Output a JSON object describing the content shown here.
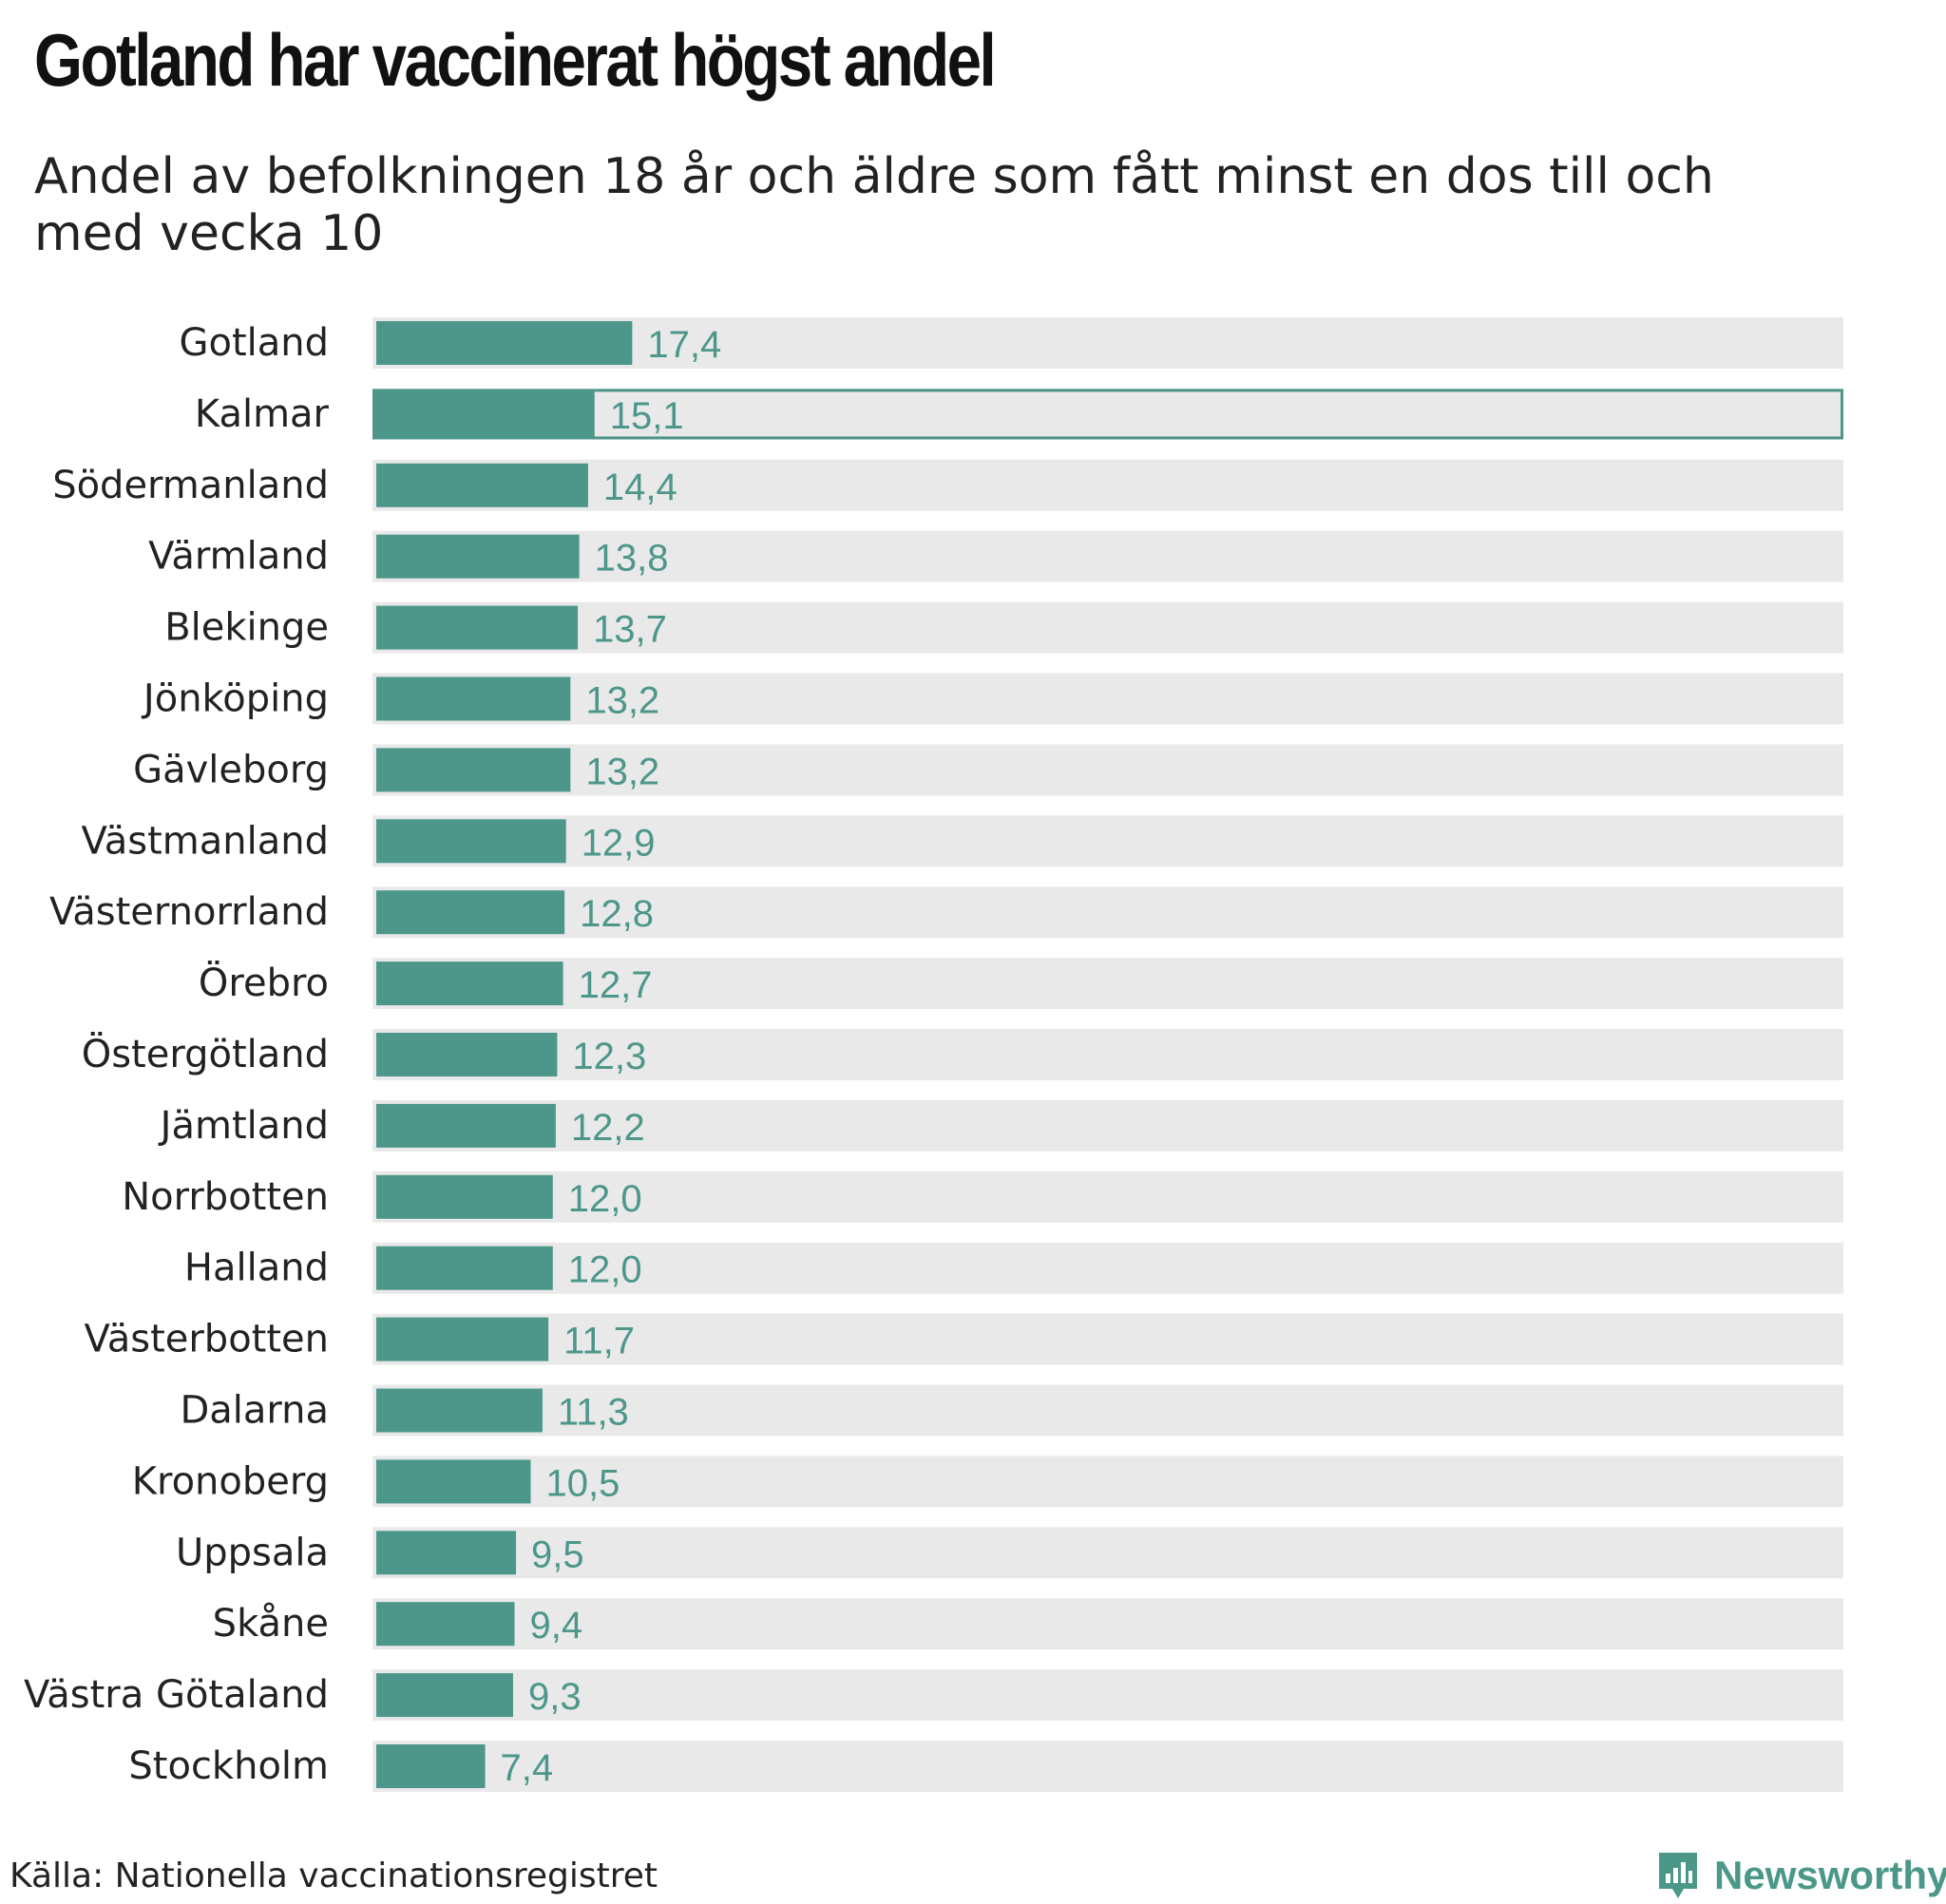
{
  "title": "Gotland har vaccinerat högst andel",
  "subtitle": "Andel av befolkningen 18 år och äldre som fått minst en dos till och med vecka 10",
  "source": "Källa: Nationella vaccinationsregistret",
  "brand": {
    "name": "Newsworthy",
    "icon": "bar-chart-speech-bubble-icon",
    "color": "#4b9889"
  },
  "colors": {
    "bar": "#4c978a",
    "track": "#e9e9e9",
    "value_label": "#4c978a",
    "highlight_outline": "#4c978a"
  },
  "chart_data": {
    "type": "bar",
    "orientation": "horizontal",
    "title": "Gotland har vaccinerat högst andel",
    "subtitle": "Andel av befolkningen 18 år och äldre som fått minst en dos till och med vecka 10",
    "xlim": [
      0,
      100
    ],
    "grid": false,
    "highlighted_category": "Kalmar",
    "categories": [
      "Gotland",
      "Kalmar",
      "Södermanland",
      "Värmland",
      "Blekinge",
      "Jönköping",
      "Gävleborg",
      "Västmanland",
      "Västernorrland",
      "Örebro",
      "Östergötland",
      "Jämtland",
      "Norrbotten",
      "Halland",
      "Västerbotten",
      "Dalarna",
      "Kronoberg",
      "Uppsala",
      "Skåne",
      "Västra Götaland",
      "Stockholm"
    ],
    "values": [
      17.4,
      15.1,
      14.4,
      13.8,
      13.7,
      13.2,
      13.2,
      12.9,
      12.8,
      12.7,
      12.3,
      12.2,
      12.0,
      12.0,
      11.7,
      11.3,
      10.5,
      9.5,
      9.4,
      9.3,
      7.4
    ],
    "value_labels": [
      "17,4",
      "15,1",
      "14,4",
      "13,8",
      "13,7",
      "13,2",
      "13,2",
      "12,9",
      "12,8",
      "12,7",
      "12,3",
      "12,2",
      "12,0",
      "12,0",
      "11,7",
      "11,3",
      "10,5",
      "9,5",
      "9,4",
      "9,3",
      "7,4"
    ]
  }
}
